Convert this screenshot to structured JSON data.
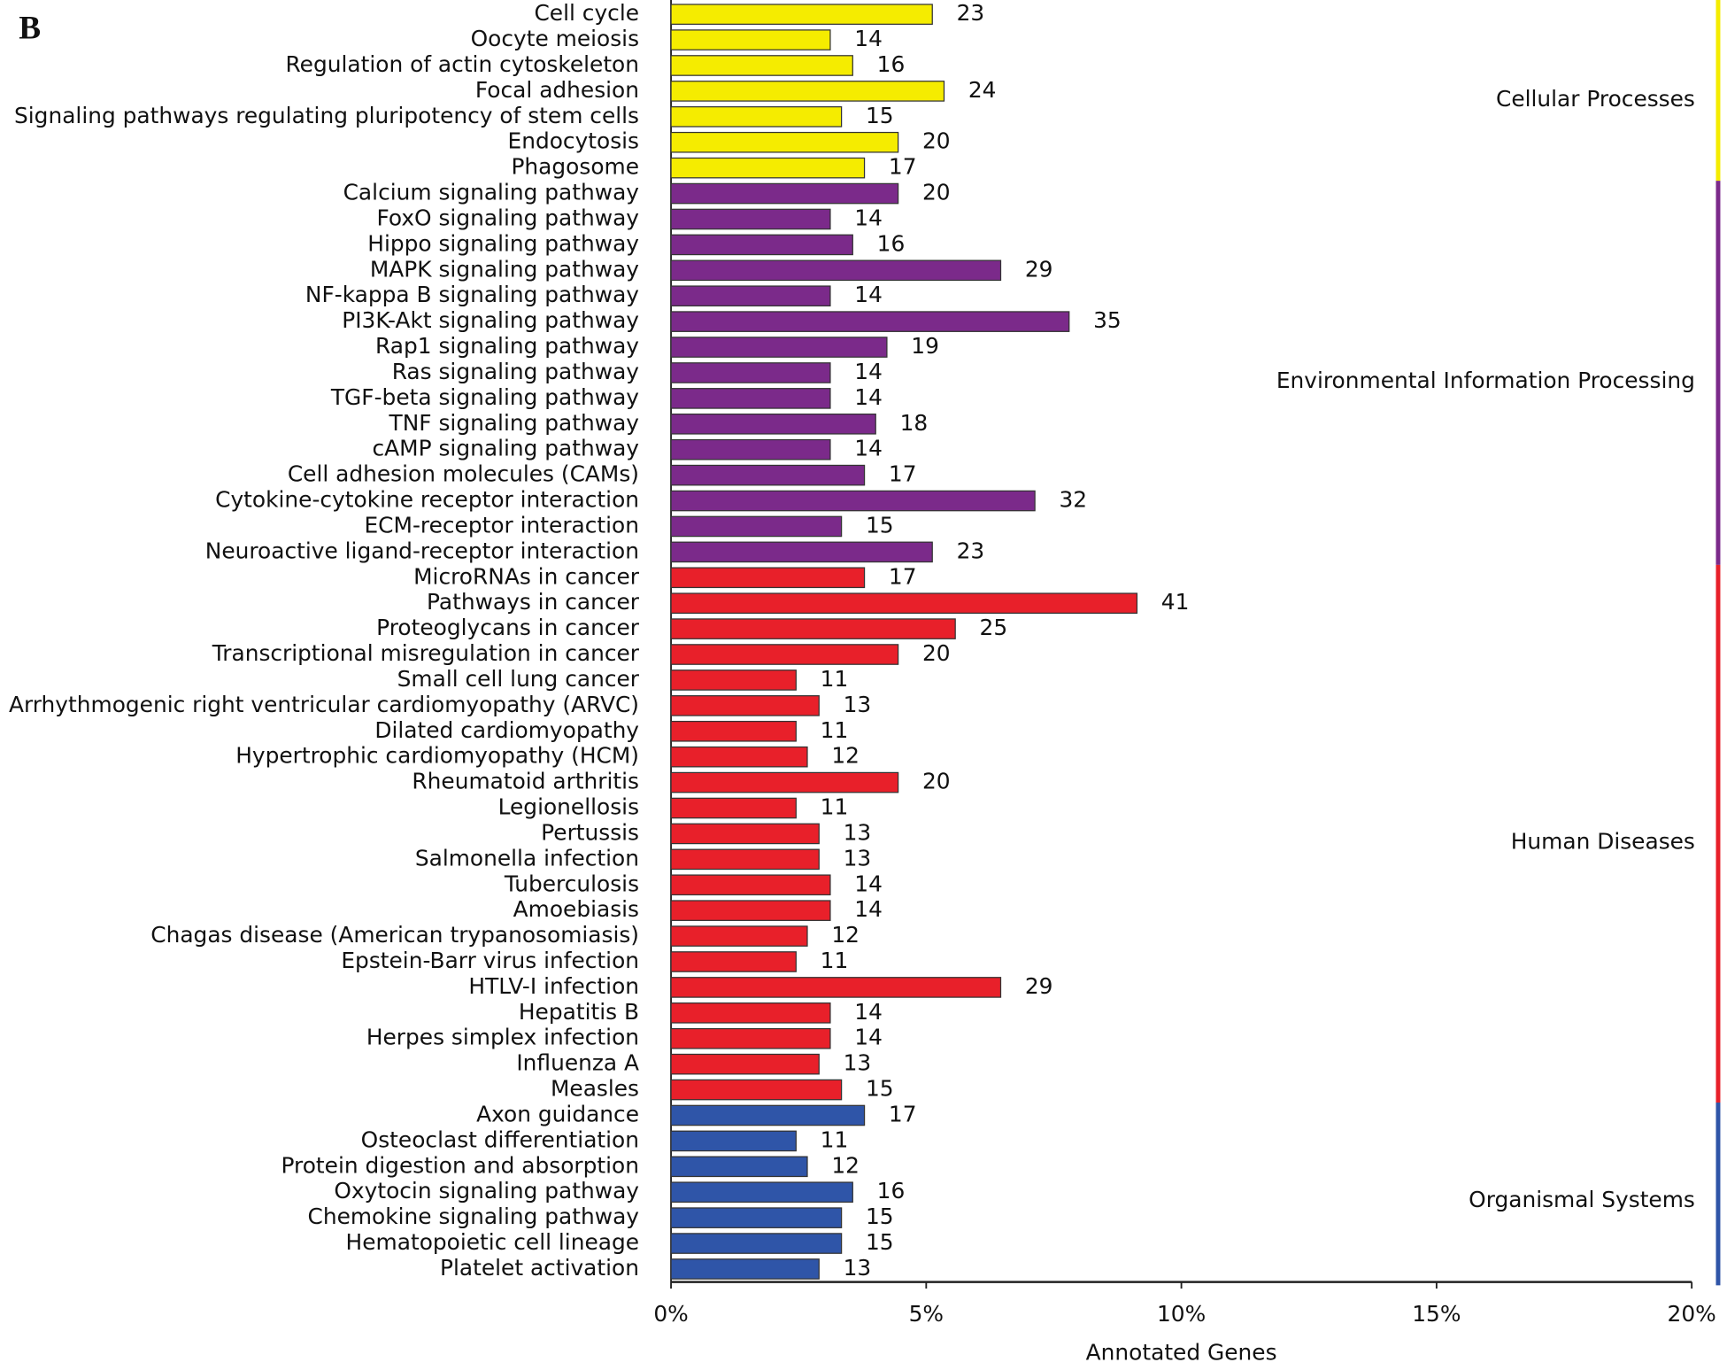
{
  "chart_data": {
    "type": "bar",
    "orientation": "horizontal",
    "panel_label": "B",
    "x_label": "Annotated Genes",
    "xlim": [
      0,
      20
    ],
    "xticks": [
      {
        "value": 0,
        "label": "0%"
      },
      {
        "value": 5,
        "label": "5%"
      },
      {
        "value": 10,
        "label": "10%"
      },
      {
        "value": 15,
        "label": "15%"
      },
      {
        "value": 20,
        "label": "20%"
      }
    ],
    "series": [
      {
        "name": "Cellular Processes",
        "color": "#f5ec00",
        "categories": [
          "Cell cycle",
          "Oocyte meiosis",
          "Regulation of actin cytoskeleton",
          "Focal adhesion",
          "Signaling pathways regulating pluripotency of stem cells",
          "Endocytosis",
          "Phagosome"
        ],
        "values": [
          5.12,
          3.12,
          3.56,
          5.35,
          3.34,
          4.45,
          3.79
        ],
        "value_labels": [
          "23",
          "14",
          "16",
          "24",
          "15",
          "20",
          "17"
        ]
      },
      {
        "name": "Environmental Information Processing",
        "color": "#7b2a8a",
        "categories": [
          "Calcium signaling pathway",
          "FoxO signaling pathway",
          "Hippo signaling pathway",
          "MAPK signaling pathway",
          "NF-kappa B signaling pathway",
          "PI3K-Akt signaling pathway",
          "Rap1 signaling pathway",
          "Ras signaling pathway",
          "TGF-beta signaling pathway",
          "TNF signaling pathway",
          "cAMP signaling pathway",
          "Cell adhesion molecules (CAMs)",
          "Cytokine-cytokine receptor interaction",
          "ECM-receptor interaction",
          "Neuroactive ligand-receptor interaction"
        ],
        "values": [
          4.45,
          3.12,
          3.56,
          6.46,
          3.12,
          7.8,
          4.23,
          3.12,
          3.12,
          4.01,
          3.12,
          3.79,
          7.13,
          3.34,
          5.12
        ],
        "value_labels": [
          "20",
          "14",
          "16",
          "29",
          "14",
          "35",
          "19",
          "14",
          "14",
          "18",
          "14",
          "17",
          "32",
          "15",
          "23"
        ]
      },
      {
        "name": "Human Diseases",
        "color": "#e8202a",
        "categories": [
          "MicroRNAs in cancer",
          "Pathways in cancer",
          "Proteoglycans in cancer",
          "Transcriptional misregulation in cancer",
          "Small cell lung cancer",
          "Arrhythmogenic right ventricular cardiomyopathy (ARVC)",
          "Dilated cardiomyopathy",
          "Hypertrophic cardiomyopathy (HCM)",
          "Rheumatoid arthritis",
          "Legionellosis",
          "Pertussis",
          "Salmonella infection",
          "Tuberculosis",
          "Amoebiasis",
          "Chagas disease (American trypanosomiasis)",
          "Epstein-Barr virus infection",
          "HTLV-I infection",
          "Hepatitis B",
          "Herpes simplex infection",
          "Influenza A",
          "Measles"
        ],
        "values": [
          3.79,
          9.13,
          5.57,
          4.45,
          2.45,
          2.9,
          2.45,
          2.67,
          4.45,
          2.45,
          2.9,
          2.9,
          3.12,
          3.12,
          2.67,
          2.45,
          6.46,
          3.12,
          3.12,
          2.9,
          3.34
        ],
        "value_labels": [
          "17",
          "41",
          "25",
          "20",
          "11",
          "13",
          "11",
          "12",
          "20",
          "11",
          "13",
          "13",
          "14",
          "14",
          "12",
          "11",
          "29",
          "14",
          "14",
          "13",
          "15"
        ]
      },
      {
        "name": "Organismal Systems",
        "color": "#2f55a8",
        "categories": [
          "Axon guidance",
          "Osteoclast differentiation",
          "Protein digestion and absorption",
          "Oxytocin signaling pathway",
          "Chemokine signaling pathway",
          "Hematopoietic cell lineage",
          "Platelet activation"
        ],
        "values": [
          3.79,
          2.45,
          2.67,
          3.56,
          3.34,
          3.34,
          2.9
        ],
        "value_labels": [
          "17",
          "11",
          "12",
          "16",
          "15",
          "15",
          "13"
        ]
      }
    ]
  }
}
